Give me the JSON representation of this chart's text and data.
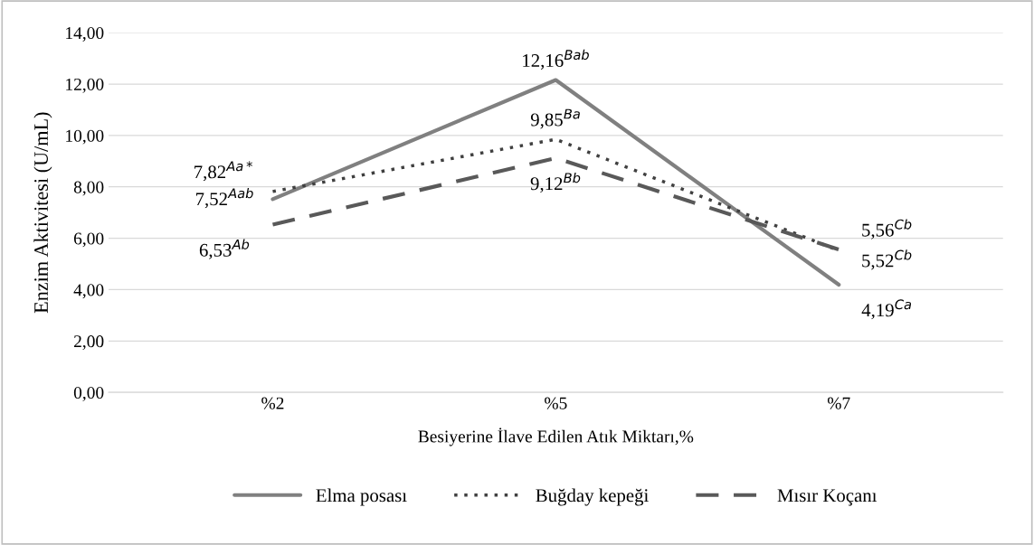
{
  "chart_data": {
    "type": "line",
    "xlabel": "Besiyerine İlave Edilen Atık Miktarı,%",
    "ylabel": "Enzim Aktivitesi (U/mL)",
    "categories": [
      "%2",
      "%5",
      "%7"
    ],
    "series": [
      {
        "name": "Elma posası",
        "color": "#808080",
        "line_style": "solid",
        "values": [
          7.52,
          12.16,
          4.19
        ],
        "value_labels": [
          "7,52$^{Aab}$",
          "12,16$^{Bab}$",
          "4,19$^{Ca}$"
        ]
      },
      {
        "name": "Buğday kepeği",
        "color": "#404040",
        "line_style": "dotted",
        "values": [
          7.82,
          9.85,
          5.52
        ],
        "value_labels": [
          "7,82$^{Aa*}$",
          "9,85$^{Ba}$",
          "5,52$^{Cb}$"
        ]
      },
      {
        "name": "Mısır Koçanı",
        "color": "#595959",
        "line_style": "dashed",
        "values": [
          6.53,
          9.12,
          5.56
        ],
        "value_labels": [
          "6,53$^{Ab}$",
          "9,12$^{Bb}$",
          "5,56$^{Cb}$"
        ]
      }
    ],
    "ylim": [
      0,
      14
    ],
    "yticks": [
      {
        "value": 0,
        "label": "0,00"
      },
      {
        "value": 2,
        "label": "2,00"
      },
      {
        "value": 4,
        "label": "4,00"
      },
      {
        "value": 6,
        "label": "6,00"
      },
      {
        "value": 8,
        "label": "8,00"
      },
      {
        "value": 10,
        "label": "10,00"
      },
      {
        "value": 12,
        "label": "12,00"
      },
      {
        "value": 14,
        "label": "14,00"
      }
    ],
    "grid": "y",
    "legend": "bottom",
    "marker": "none"
  }
}
